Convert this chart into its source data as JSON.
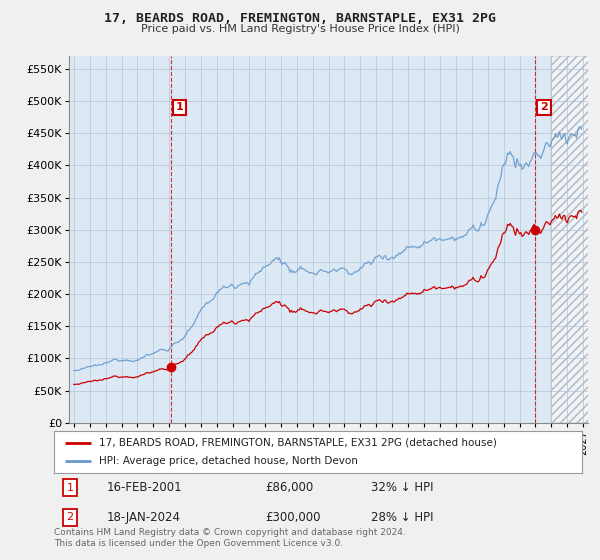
{
  "title": "17, BEARDS ROAD, FREMINGTON, BARNSTAPLE, EX31 2PG",
  "subtitle": "Price paid vs. HM Land Registry's House Price Index (HPI)",
  "legend_property": "17, BEARDS ROAD, FREMINGTON, BARNSTAPLE, EX31 2PG (detached house)",
  "legend_hpi": "HPI: Average price, detached house, North Devon",
  "annotation1_label": "1",
  "annotation1_date": "16-FEB-2001",
  "annotation1_price": "£86,000",
  "annotation1_hpi": "32% ↓ HPI",
  "annotation2_label": "2",
  "annotation2_date": "18-JAN-2024",
  "annotation2_price": "£300,000",
  "annotation2_hpi": "28% ↓ HPI",
  "footer": "Contains HM Land Registry data © Crown copyright and database right 2024.\nThis data is licensed under the Open Government Licence v3.0.",
  "property_color": "#cc0000",
  "hpi_color": "#6699cc",
  "background_color": "#f0f0f0",
  "plot_bg_color": "#dce9f5",
  "grid_color": "#b0c4d8",
  "annotation_color": "#cc0000",
  "ylim": [
    0,
    570000
  ],
  "xlim_start": 1994.7,
  "xlim_end": 2027.3
}
